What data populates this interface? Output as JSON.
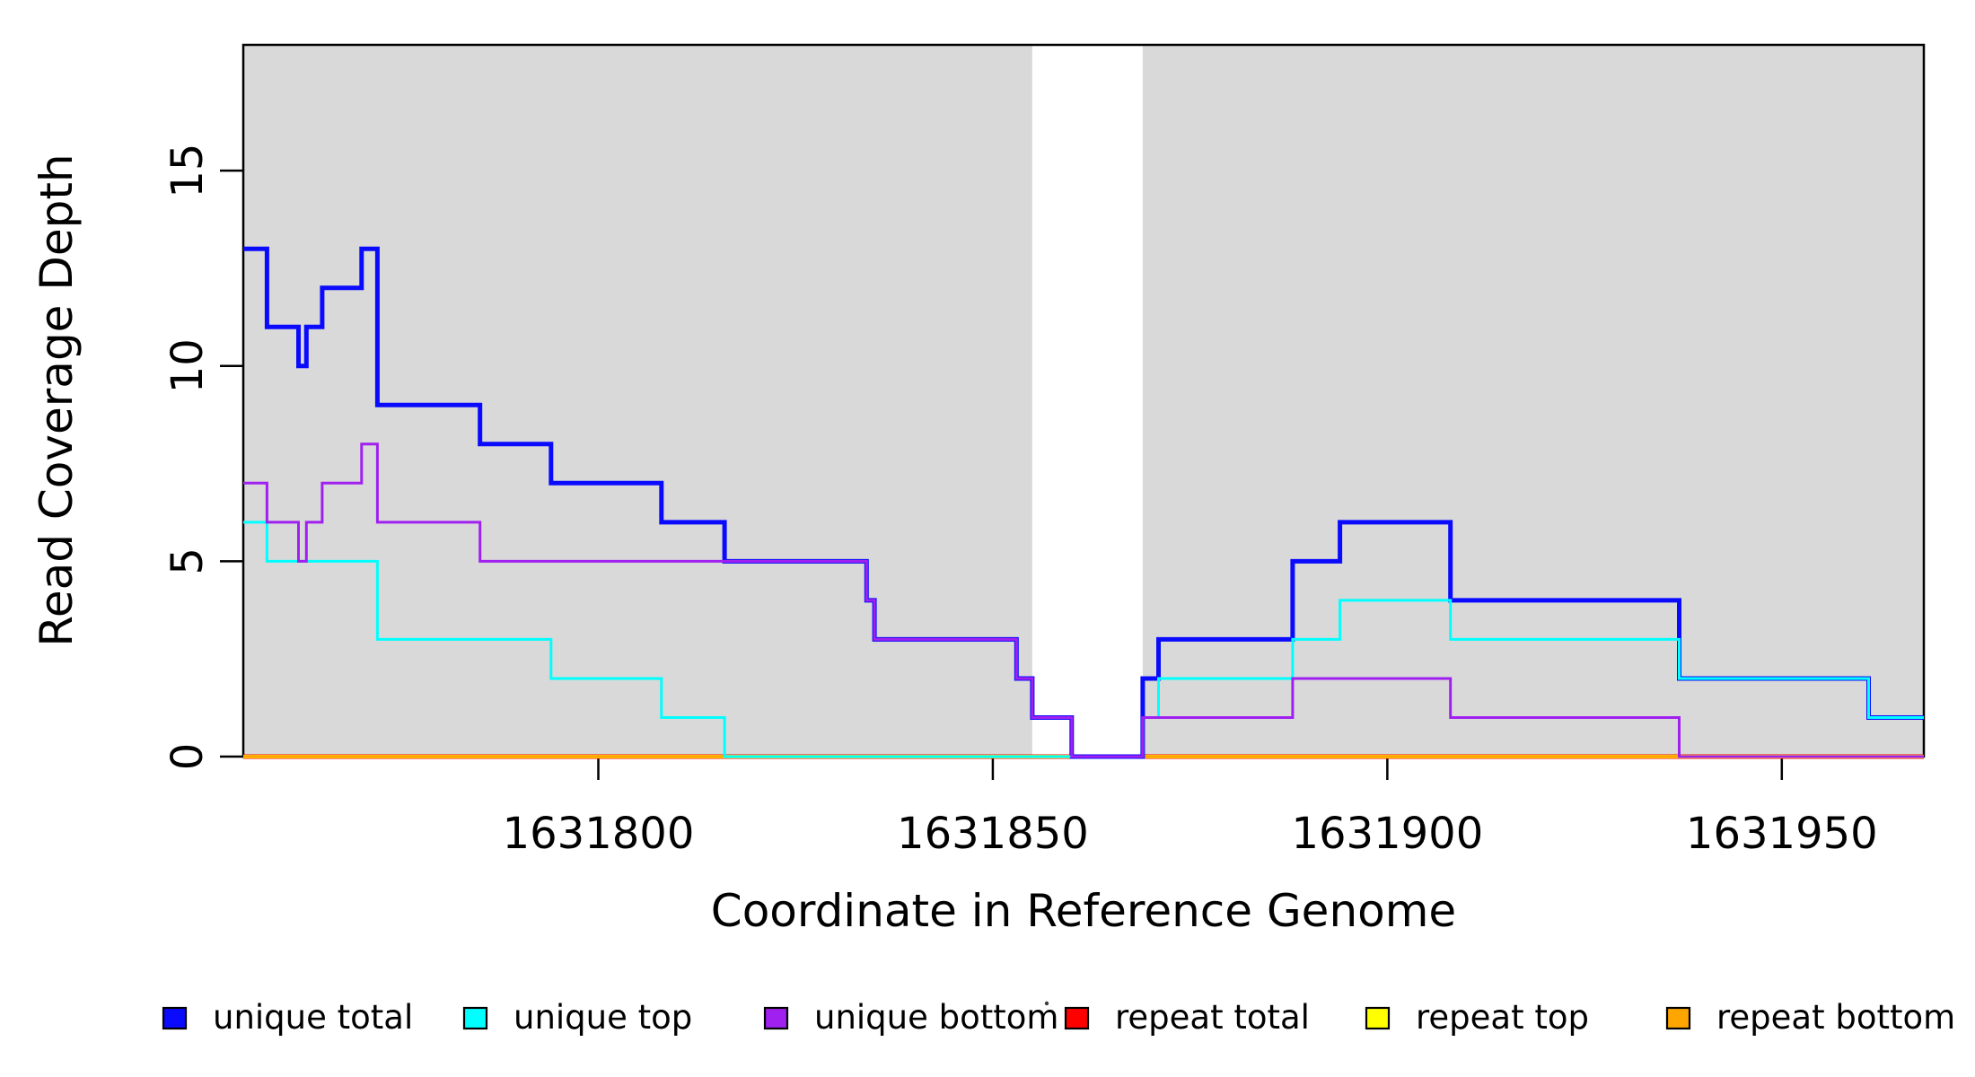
{
  "chart_data": {
    "type": "line",
    "subtype": "step",
    "title": "",
    "xlabel": "Coordinate in Reference Genome",
    "ylabel": "Read Coverage Depth",
    "xlim": [
      1631755,
      1631968
    ],
    "ylim": [
      0,
      18.22
    ],
    "x_ticks": [
      1631800,
      1631850,
      1631900,
      1631950
    ],
    "y_ticks": [
      0,
      5,
      10,
      15
    ],
    "grid": false,
    "background_color": "#ffffff",
    "shaded_region_color": "#d9d9d9",
    "shaded_regions": [
      {
        "x0": 1631755,
        "x1": 1631855
      },
      {
        "x0": 1631869,
        "x1": 1631968
      }
    ],
    "legend_position": "bottom",
    "legend": [
      {
        "label": "unique total",
        "color": "#0a0aff"
      },
      {
        "label": "unique top",
        "color": "#00ffff"
      },
      {
        "label": "unique bottom",
        "color": "#a020f0"
      },
      {
        "label": "repeat total",
        "color": "#ff0000"
      },
      {
        "label": "repeat top",
        "color": "#ffff00"
      },
      {
        "label": "repeat bottom",
        "color": "#ffa500"
      }
    ],
    "series": [
      {
        "name": "repeat total",
        "color": "#ff0000",
        "stroke_width": 5,
        "points": [
          [
            1631755,
            0
          ],
          [
            1631968,
            0
          ]
        ]
      },
      {
        "name": "repeat top",
        "color": "#ffff00",
        "stroke_width": 4,
        "points": [
          [
            1631755,
            0
          ],
          [
            1631968,
            0
          ]
        ]
      },
      {
        "name": "repeat bottom",
        "color": "#ffa500",
        "stroke_width": 3.5,
        "points": [
          [
            1631755,
            0
          ],
          [
            1631968,
            0
          ]
        ]
      },
      {
        "name": "unique total",
        "color": "#0a0aff",
        "stroke_width": 5,
        "points": [
          [
            1631755,
            13
          ],
          [
            1631758,
            11
          ],
          [
            1631762,
            10
          ],
          [
            1631763,
            11
          ],
          [
            1631765,
            12
          ],
          [
            1631770,
            13
          ],
          [
            1631772,
            9
          ],
          [
            1631785,
            8
          ],
          [
            1631794,
            7
          ],
          [
            1631808,
            6
          ],
          [
            1631816,
            5
          ],
          [
            1631834,
            4
          ],
          [
            1631835,
            3
          ],
          [
            1631853,
            2
          ],
          [
            1631855,
            1
          ],
          [
            1631860,
            0
          ],
          [
            1631869,
            2
          ],
          [
            1631871,
            3
          ],
          [
            1631888,
            5
          ],
          [
            1631894,
            6
          ],
          [
            1631908,
            4
          ],
          [
            1631937,
            2
          ],
          [
            1631961,
            1
          ],
          [
            1631968,
            1
          ]
        ]
      },
      {
        "name": "unique top",
        "color": "#00ffff",
        "stroke_width": 3,
        "points": [
          [
            1631755,
            6
          ],
          [
            1631758,
            5
          ],
          [
            1631772,
            3
          ],
          [
            1631794,
            2
          ],
          [
            1631808,
            1
          ],
          [
            1631816,
            0
          ],
          [
            1631869,
            1
          ],
          [
            1631871,
            2
          ],
          [
            1631888,
            3
          ],
          [
            1631894,
            4
          ],
          [
            1631908,
            3
          ],
          [
            1631937,
            2
          ],
          [
            1631961,
            1
          ],
          [
            1631968,
            1
          ]
        ]
      },
      {
        "name": "unique bottom",
        "color": "#a020f0",
        "stroke_width": 3,
        "points": [
          [
            1631755,
            7
          ],
          [
            1631758,
            6
          ],
          [
            1631762,
            5
          ],
          [
            1631763,
            6
          ],
          [
            1631765,
            7
          ],
          [
            1631770,
            8
          ],
          [
            1631772,
            6
          ],
          [
            1631785,
            5
          ],
          [
            1631834,
            4
          ],
          [
            1631835,
            3
          ],
          [
            1631853,
            2
          ],
          [
            1631855,
            1
          ],
          [
            1631860,
            0
          ],
          [
            1631869,
            1
          ],
          [
            1631888,
            2
          ],
          [
            1631908,
            1
          ],
          [
            1631937,
            0
          ],
          [
            1631968,
            0
          ]
        ]
      }
    ],
    "legend_artifact_dot": "·"
  }
}
